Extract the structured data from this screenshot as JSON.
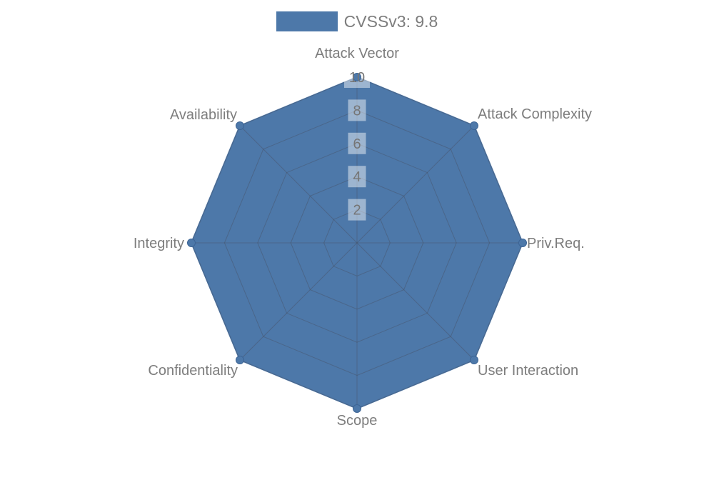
{
  "legend": {
    "label": "CVSSv3: 9.8"
  },
  "chart_data": {
    "type": "radar",
    "legend_position": "top",
    "categories": [
      "Attack Vector",
      "Attack Complexity",
      "Priv.Req.",
      "User Interaction",
      "Scope",
      "Confidentiality",
      "Integrity",
      "Availability"
    ],
    "series": [
      {
        "name": "CVSSv3: 9.8",
        "values": [
          10,
          10,
          10,
          10,
          10,
          10,
          10,
          10
        ]
      }
    ],
    "scale": {
      "min": 0,
      "max": 10,
      "tick_step": 2,
      "tick_labels": [
        "2",
        "4",
        "6",
        "8",
        "10"
      ]
    },
    "grid": {
      "shape": "octagon",
      "rings": 5,
      "spokes": 8
    },
    "colors": {
      "series_fill": "#4d78a9",
      "marker_fill": "#4d78a9",
      "marker_border": "#3c6495",
      "grid_line": "rgba(70,80,100,0.45)",
      "axis_label_text": "#7d7d7d",
      "tick_text": "#757575",
      "tick_backdrop": "rgba(255,255,255,0.45)",
      "background": "#ffffff"
    }
  }
}
